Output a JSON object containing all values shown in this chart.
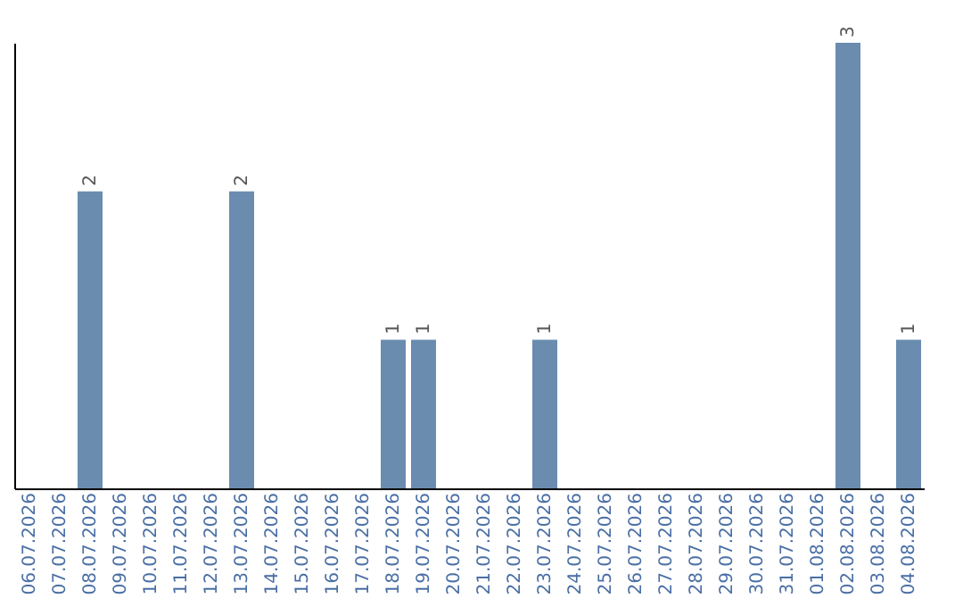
{
  "chart_data": {
    "type": "bar",
    "categories": [
      "06.07.2026",
      "07.07.2026",
      "08.07.2026",
      "09.07.2026",
      "10.07.2026",
      "11.07.2026",
      "12.07.2026",
      "13.07.2026",
      "14.07.2026",
      "15.07.2026",
      "16.07.2026",
      "17.07.2026",
      "18.07.2026",
      "19.07.2026",
      "20.07.2026",
      "21.07.2026",
      "22.07.2026",
      "23.07.2026",
      "24.07.2026",
      "25.07.2026",
      "26.07.2026",
      "27.07.2026",
      "28.07.2026",
      "29.07.2026",
      "30.07.2026",
      "31.07.2026",
      "01.08.2026",
      "02.08.2026",
      "03.08.2026",
      "04.08.2026"
    ],
    "values": [
      0,
      0,
      2,
      0,
      0,
      0,
      0,
      2,
      0,
      0,
      0,
      0,
      1,
      1,
      0,
      0,
      0,
      1,
      0,
      0,
      0,
      0,
      0,
      0,
      0,
      0,
      0,
      3,
      0,
      1
    ],
    "value_labels": [
      null,
      null,
      "2",
      null,
      null,
      null,
      null,
      "2",
      null,
      null,
      null,
      null,
      "1",
      "1",
      null,
      null,
      null,
      "1",
      null,
      null,
      null,
      null,
      null,
      null,
      null,
      null,
      null,
      "3",
      null,
      "1"
    ],
    "color": "#6a8caf",
    "tick_labels": "x",
    "grid": false
  }
}
